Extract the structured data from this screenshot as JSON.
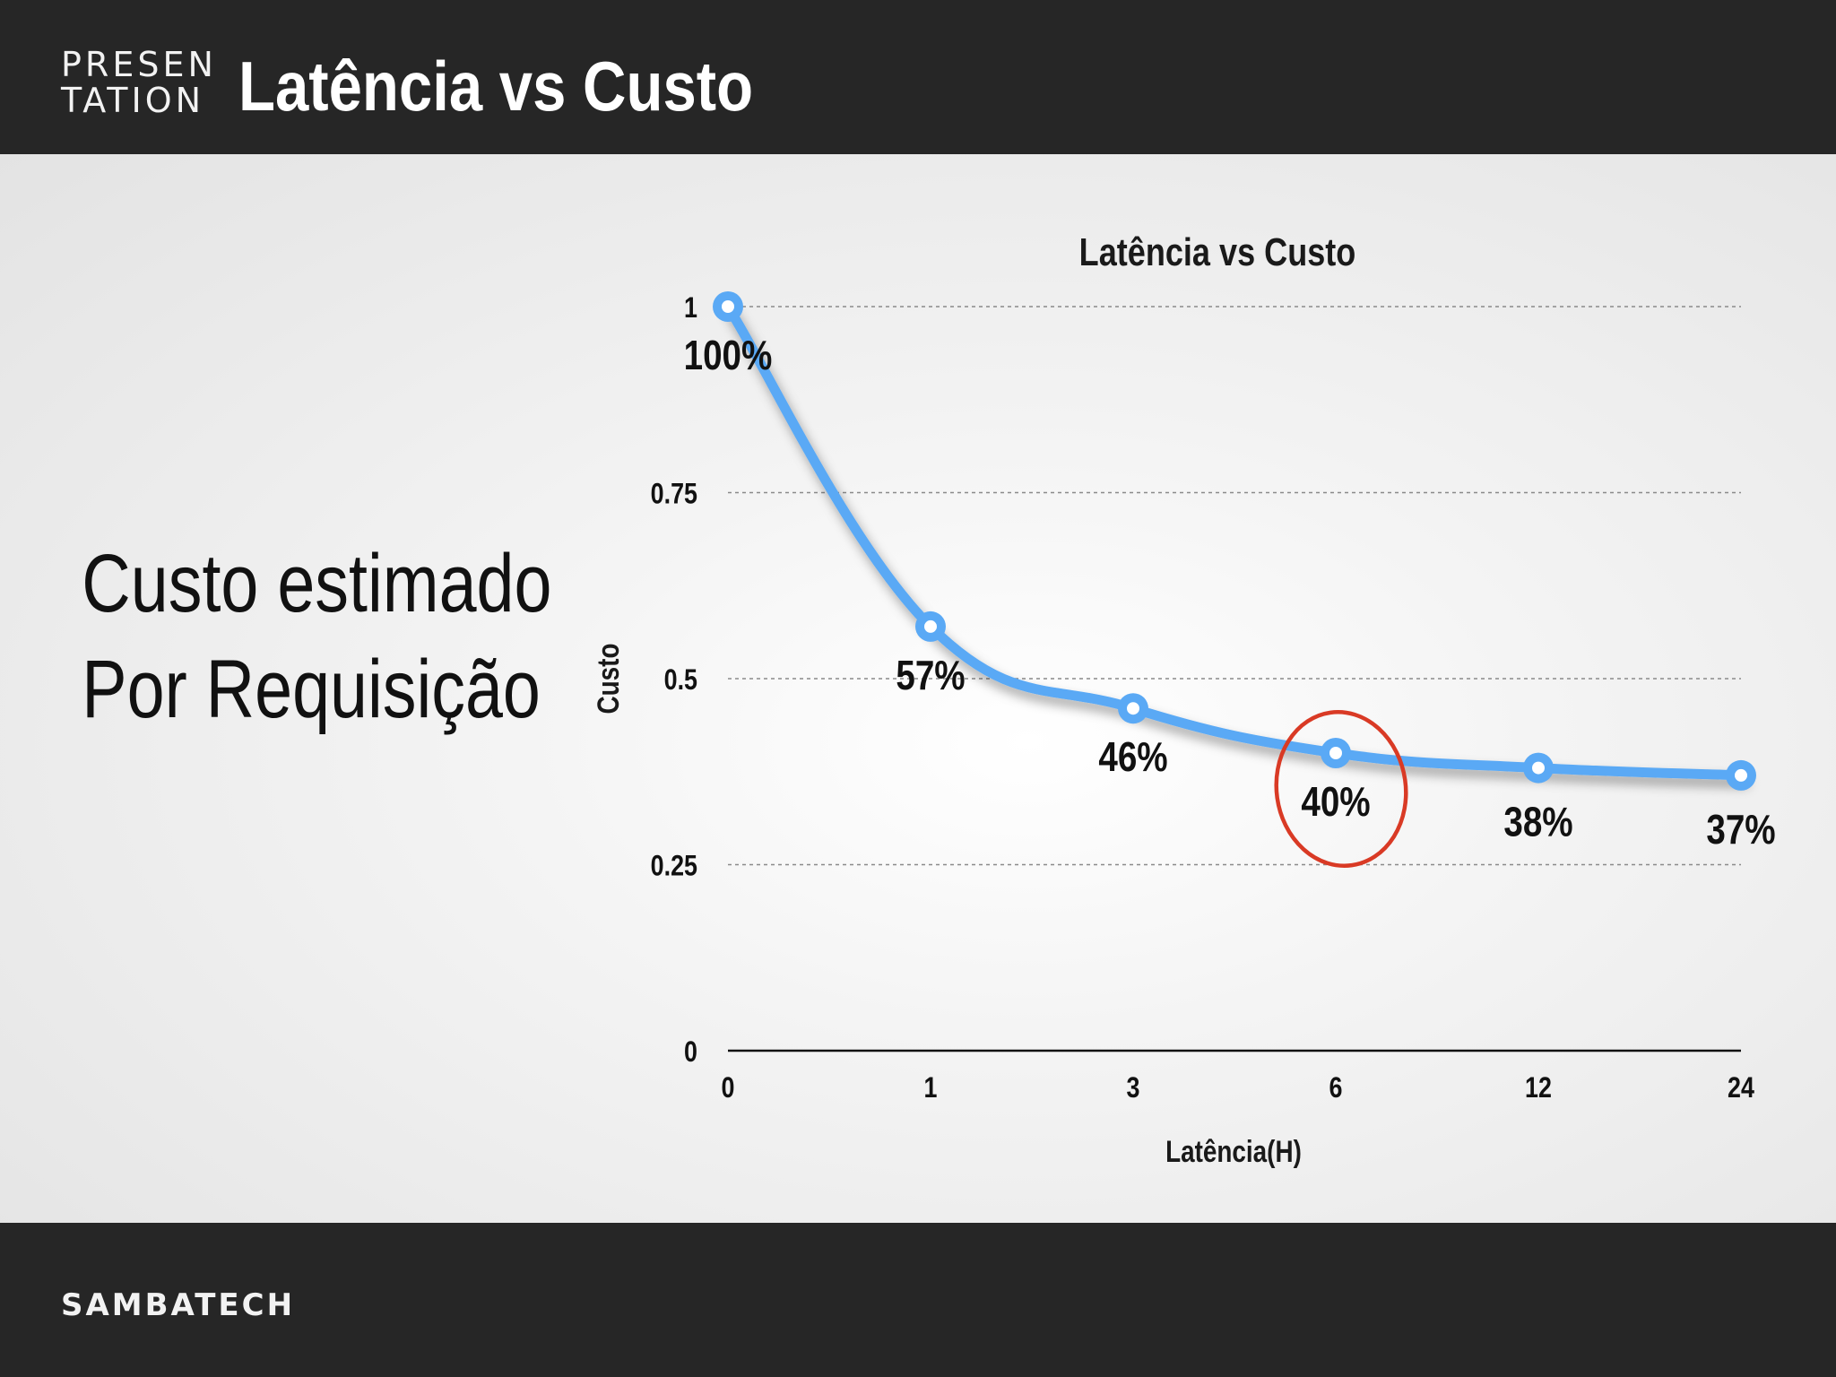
{
  "header": {
    "logo_line1": "PRESEN",
    "logo_line2": "TATION",
    "title": "Latência vs Custo"
  },
  "left_text": {
    "line1": "Custo estimado",
    "line2": "Por Requisição"
  },
  "footer": {
    "brand": "SAMBATECH"
  },
  "colors": {
    "line": "#5aa9f5",
    "highlight_circle": "#d93a25",
    "bars": "#262626"
  },
  "chart_data": {
    "type": "line",
    "title": "Latência vs Custo",
    "xlabel": "Latência(H)",
    "ylabel": "Custo",
    "categories": [
      "0",
      "1",
      "3",
      "6",
      "12",
      "24"
    ],
    "values": [
      1.0,
      0.57,
      0.46,
      0.4,
      0.38,
      0.37
    ],
    "data_labels": [
      "100%",
      "57%",
      "46%",
      "40%",
      "38%",
      "37%"
    ],
    "y_ticks": [
      "0",
      "0.25",
      "0.5",
      "0.75",
      "1"
    ],
    "y_tick_values": [
      0,
      0.25,
      0.5,
      0.75,
      1
    ],
    "ylim": [
      0,
      1
    ],
    "grid": true,
    "legend": "none",
    "highlighted_category": "6"
  }
}
